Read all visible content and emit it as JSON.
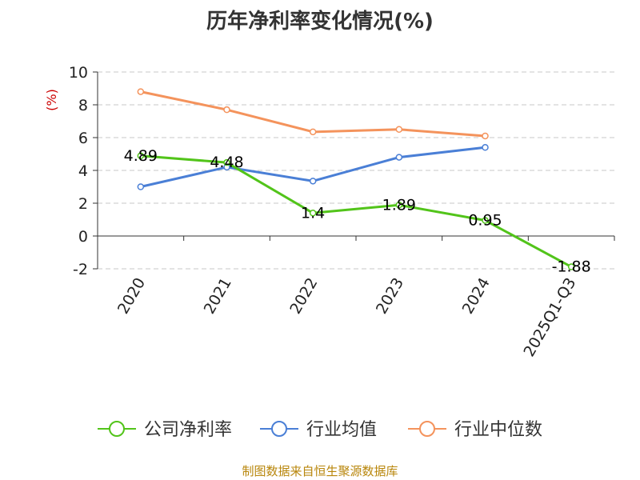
{
  "title": "历年净利率变化情况(%)",
  "source": "制图数据来自恒生聚源数据库",
  "chart_data": {
    "type": "line",
    "title": "历年净利率变化情况(%)",
    "ylabel": "(%)",
    "categories": [
      "2020",
      "2021",
      "2022",
      "2023",
      "2024",
      "2025Q1-Q3"
    ],
    "ylim": [
      -2,
      10
    ],
    "yticks": [
      -2,
      0,
      2,
      4,
      6,
      8,
      10
    ],
    "grid": true,
    "legend_position": "bottom",
    "series": [
      {
        "name": "公司净利率",
        "color": "#52c41a",
        "values": [
          4.89,
          4.48,
          1.4,
          1.89,
          0.95,
          -1.88
        ],
        "labels": [
          "4.89",
          "4.48",
          "1.4",
          "1.89",
          "0.95",
          "-1.88"
        ]
      },
      {
        "name": "行业均值",
        "color": "#4a7fd6",
        "values": [
          3.0,
          4.2,
          3.35,
          4.8,
          5.4,
          null
        ]
      },
      {
        "name": "行业中位数",
        "color": "#f4935c",
        "values": [
          8.8,
          7.7,
          6.35,
          6.5,
          6.1,
          null
        ]
      }
    ]
  }
}
